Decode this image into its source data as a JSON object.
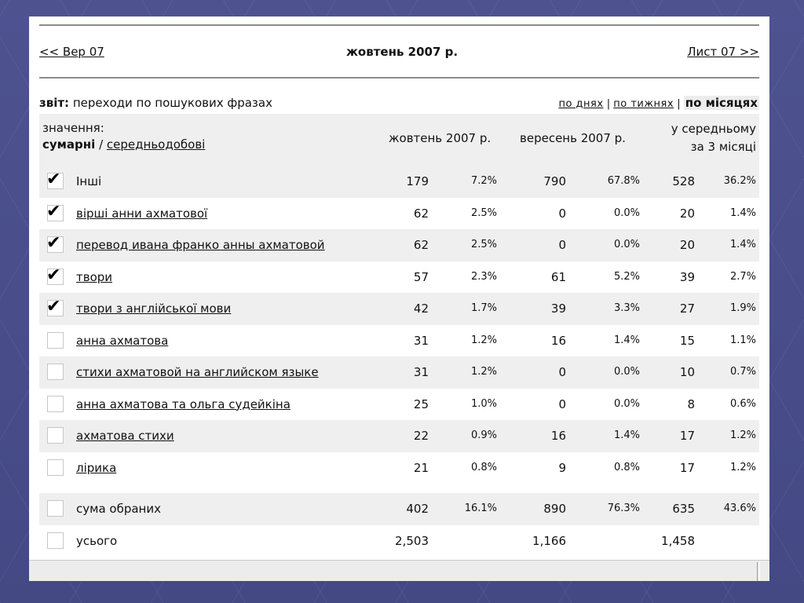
{
  "nav": {
    "prev": "<< Вер 07",
    "title": "жовтень 2007 р.",
    "next": "Лист 07 >>"
  },
  "report": {
    "prefix": "звіт:",
    "text": "переходи по пошукових фразах",
    "views": [
      "по днях",
      "по тижнях",
      "по місяцях"
    ],
    "separator": "|"
  },
  "header": {
    "values_label": "значення:",
    "sum_label": "сумарні",
    "slash": "/",
    "daily_label": "середньодобові",
    "col_oct": "жовтень 2007 р.",
    "col_sep": "вересень 2007 р.",
    "col_avg_line1": "у середньому",
    "col_avg_line2": "за 3 місяці"
  },
  "rows": [
    {
      "checked": true,
      "label": "Інші",
      "link": false,
      "oct": "179",
      "oct_pct": "7.2%",
      "sep": "790",
      "sep_pct": "67.8%",
      "avg": "528",
      "avg_pct": "36.2%"
    },
    {
      "checked": true,
      "label": "вірші анни ахматової",
      "link": true,
      "oct": "62",
      "oct_pct": "2.5%",
      "sep": "0",
      "sep_pct": "0.0%",
      "avg": "20",
      "avg_pct": "1.4%"
    },
    {
      "checked": true,
      "label": "перевод ивана франко анны ахматовой",
      "link": true,
      "oct": "62",
      "oct_pct": "2.5%",
      "sep": "0",
      "sep_pct": "0.0%",
      "avg": "20",
      "avg_pct": "1.4%"
    },
    {
      "checked": true,
      "label": "твори",
      "link": true,
      "oct": "57",
      "oct_pct": "2.3%",
      "sep": "61",
      "sep_pct": "5.2%",
      "avg": "39",
      "avg_pct": "2.7%"
    },
    {
      "checked": true,
      "label": "твори з англійської мови",
      "link": true,
      "oct": "42",
      "oct_pct": "1.7%",
      "sep": "39",
      "sep_pct": "3.3%",
      "avg": "27",
      "avg_pct": "1.9%"
    },
    {
      "checked": false,
      "label": "анна ахматова",
      "link": true,
      "oct": "31",
      "oct_pct": "1.2%",
      "sep": "16",
      "sep_pct": "1.4%",
      "avg": "15",
      "avg_pct": "1.1%"
    },
    {
      "checked": false,
      "label": "стихи ахматовой на английском языке",
      "link": true,
      "oct": "31",
      "oct_pct": "1.2%",
      "sep": "0",
      "sep_pct": "0.0%",
      "avg": "10",
      "avg_pct": "0.7%"
    },
    {
      "checked": false,
      "label": "анна ахматова та ольга судейкіна",
      "link": true,
      "oct": "25",
      "oct_pct": "1.0%",
      "sep": "0",
      "sep_pct": "0.0%",
      "avg": "8",
      "avg_pct": "0.6%"
    },
    {
      "checked": false,
      "label": "ахматова стихи",
      "link": true,
      "oct": "22",
      "oct_pct": "0.9%",
      "sep": "16",
      "sep_pct": "1.4%",
      "avg": "17",
      "avg_pct": "1.2%"
    },
    {
      "checked": false,
      "label": "лірика",
      "link": true,
      "oct": "21",
      "oct_pct": "0.8%",
      "sep": "9",
      "sep_pct": "0.8%",
      "avg": "17",
      "avg_pct": "1.2%"
    }
  ],
  "summary": [
    {
      "checked": false,
      "label": "сума обраних",
      "oct": "402",
      "oct_pct": "16.1%",
      "sep": "890",
      "sep_pct": "76.3%",
      "avg": "635",
      "avg_pct": "43.6%"
    },
    {
      "checked": false,
      "label": "усього",
      "oct": "2,503",
      "oct_pct": "",
      "sep": "1,166",
      "sep_pct": "",
      "avg": "1,458",
      "avg_pct": ""
    }
  ],
  "icons": {
    "check": "checkmark-icon"
  }
}
